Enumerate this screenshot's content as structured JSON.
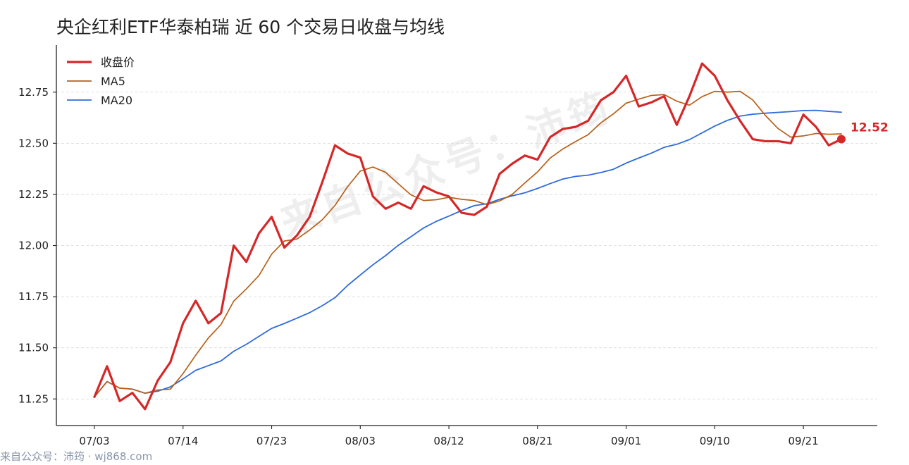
{
  "watermark": "来自公众号：沛筠",
  "footer": "来自公众号：沛筠 · wj868.com",
  "chart_data": {
    "type": "line",
    "title": "央企红利ETF华泰柏瑞 近 60 个交易日收盘与均线",
    "x_tick_labels": [
      "07/03",
      "07/14",
      "07/23",
      "08/03",
      "08/12",
      "08/21",
      "09/01",
      "09/10",
      "09/21"
    ],
    "y_tick_labels": [
      "11.25",
      "11.50",
      "11.75",
      "12.00",
      "12.25",
      "12.50",
      "12.75"
    ],
    "ylim": [
      11.12,
      12.98
    ],
    "grid": true,
    "legend_position": "top-left",
    "series": [
      {
        "name": "收盘价",
        "color": "#d62728",
        "values": [
          11.26,
          11.41,
          11.24,
          11.28,
          11.2,
          11.34,
          11.43,
          11.62,
          11.73,
          11.62,
          11.67,
          12.0,
          11.92,
          12.06,
          12.14,
          11.99,
          12.05,
          12.14,
          12.31,
          12.49,
          12.45,
          12.43,
          12.24,
          12.18,
          12.21,
          12.18,
          12.29,
          12.26,
          12.24,
          12.16,
          12.15,
          12.19,
          12.35,
          12.4,
          12.44,
          12.42,
          12.53,
          12.57,
          12.58,
          12.61,
          12.71,
          12.75,
          12.83,
          12.68,
          12.7,
          12.73,
          12.59,
          12.73,
          12.89,
          12.83,
          12.71,
          12.61,
          12.52,
          12.51,
          12.51,
          12.5,
          12.64,
          12.58,
          12.49,
          12.52
        ]
      },
      {
        "name": "MA5",
        "color": "#b8601a",
        "values": [
          11.26,
          11.335,
          11.303,
          11.298,
          11.278,
          11.294,
          11.298,
          11.374,
          11.464,
          11.548,
          11.614,
          11.728,
          11.788,
          11.854,
          11.958,
          12.022,
          12.032,
          12.076,
          12.126,
          12.196,
          12.288,
          12.364,
          12.384,
          12.358,
          12.302,
          12.248,
          12.22,
          12.224,
          12.236,
          12.226,
          12.22,
          12.2,
          12.218,
          12.25,
          12.306,
          12.36,
          12.428,
          12.472,
          12.508,
          12.542,
          12.6,
          12.644,
          12.696,
          12.716,
          12.734,
          12.738,
          12.706,
          12.686,
          12.728,
          12.754,
          12.75,
          12.754,
          12.712,
          12.636,
          12.572,
          12.53,
          12.536,
          12.548,
          12.544,
          12.546
        ]
      },
      {
        "name": "MA20",
        "color": "#2f6bdb",
        "values": [
          11.26,
          11.335,
          11.303,
          11.298,
          11.278,
          11.288,
          11.309,
          11.348,
          11.39,
          11.413,
          11.436,
          11.483,
          11.517,
          11.556,
          11.595,
          11.619,
          11.645,
          11.672,
          11.706,
          11.745,
          11.805,
          11.856,
          11.906,
          11.951,
          12.001,
          12.043,
          12.086,
          12.118,
          12.144,
          12.171,
          12.195,
          12.204,
          12.226,
          12.243,
          12.258,
          12.279,
          12.303,
          12.325,
          12.338,
          12.344,
          12.357,
          12.373,
          12.403,
          12.428,
          12.452,
          12.48,
          12.495,
          12.518,
          12.551,
          12.584,
          12.612,
          12.633,
          12.642,
          12.647,
          12.651,
          12.655,
          12.66,
          12.661,
          12.656,
          12.652
        ]
      }
    ],
    "annotation": {
      "text": "12.52"
    }
  }
}
